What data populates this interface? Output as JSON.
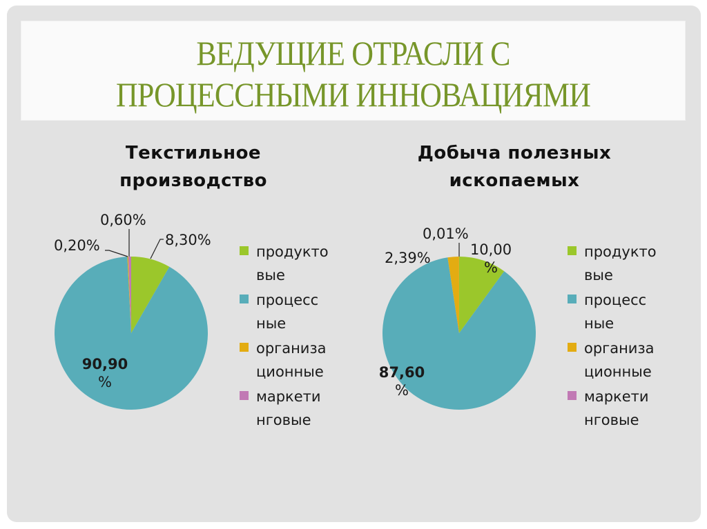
{
  "slide": {
    "title_line1": "ВЕДУЩИЕ ОТРАСЛИ С",
    "title_line2": "ПРОЦЕССНЫМИ ИННОВАЦИЯМИ"
  },
  "colors": {
    "product": "#9bc72b",
    "process": "#58adb9",
    "organizational": "#e3ac12",
    "marketing": "#c179b4",
    "title": "#77962a"
  },
  "legend": [
    {
      "line1": "продукто",
      "line2": "вые",
      "color": "#9bc72b"
    },
    {
      "line1": "процесс",
      "line2": "ные",
      "color": "#58adb9"
    },
    {
      "line1": "организа",
      "line2": "ционные",
      "color": "#e3ac12"
    },
    {
      "line1": "маркети",
      "line2": "нговые",
      "color": "#c179b4"
    }
  ],
  "chart_data": [
    {
      "type": "pie",
      "title_line1": "Текстильное",
      "title_line2": "производство",
      "categories": [
        "продуктовые",
        "процессные",
        "организационные",
        "маркетинговые"
      ],
      "values": [
        8.3,
        90.9,
        0.2,
        0.6
      ],
      "labels": {
        "product": "8,30%",
        "process_line1": "90,90",
        "process_line2": "%",
        "organizational": "0,20%",
        "marketing": "0,60%"
      },
      "legend_position": "right"
    },
    {
      "type": "pie",
      "title_line1": "Добыча полезных",
      "title_line2": "ископаемых",
      "categories": [
        "продуктовые",
        "процессные",
        "организационные",
        "маркетинговые"
      ],
      "values": [
        10.0,
        87.6,
        2.39,
        0.01
      ],
      "labels": {
        "product_line1": "10,00",
        "product_line2": "%",
        "process_line1": "87,60",
        "process_line2": "%",
        "organizational": "2,39%",
        "marketing": "0,01%"
      },
      "legend_position": "right"
    }
  ]
}
